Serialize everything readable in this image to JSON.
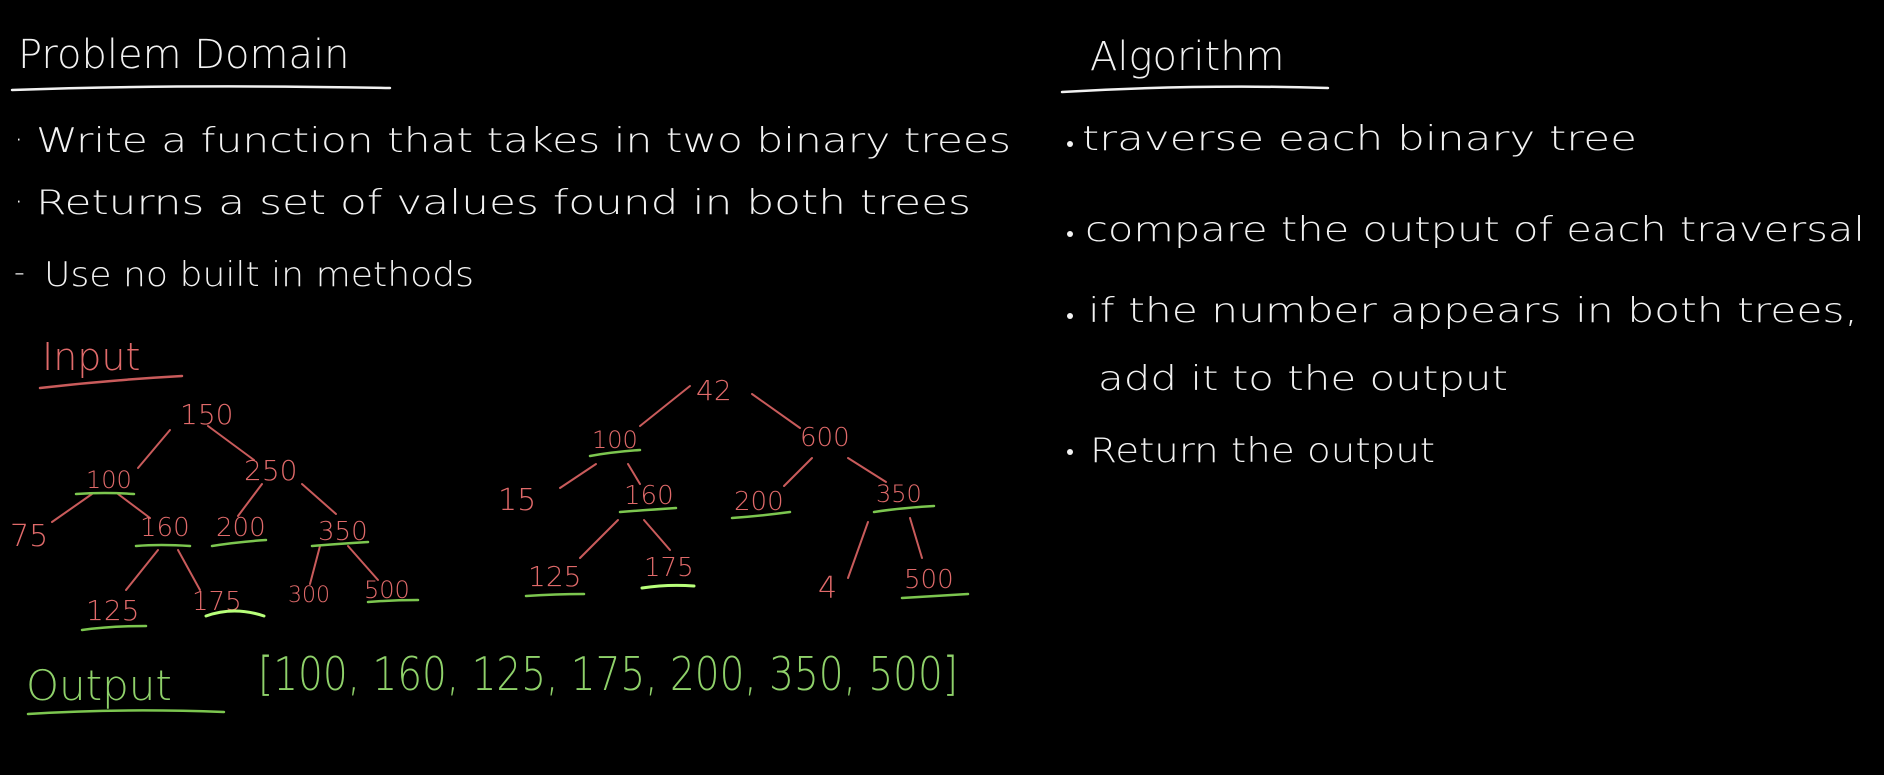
{
  "problem_domain": {
    "title": "Problem Domain",
    "bullets": [
      "Write a function that takes in two binary trees",
      "Returns a set of values found in both trees",
      "Use no built in methods"
    ]
  },
  "algorithm": {
    "title": "Algorithm",
    "steps": [
      "traverse each binary tree",
      "compare the output of each traversal",
      "if the number appears in both trees,",
      "add it to the output",
      "Return the output"
    ]
  },
  "input": {
    "label": "Input",
    "tree1": {
      "root": "150",
      "nodes": [
        "100",
        "250",
        "75",
        "160",
        "200",
        "350",
        "125",
        "175",
        "300",
        "500"
      ]
    },
    "tree2": {
      "root": "42",
      "nodes": [
        "100",
        "600",
        "15",
        "160",
        "200",
        "350",
        "125",
        "175",
        "4",
        "500"
      ]
    }
  },
  "output": {
    "label": "Output",
    "value": "[100, 160, 125, 175, 200, 350, 500]"
  },
  "colors": {
    "background": "#000000",
    "text": "#f2f2f2",
    "tree": "#e06a6a",
    "match": "#8fd16a"
  }
}
